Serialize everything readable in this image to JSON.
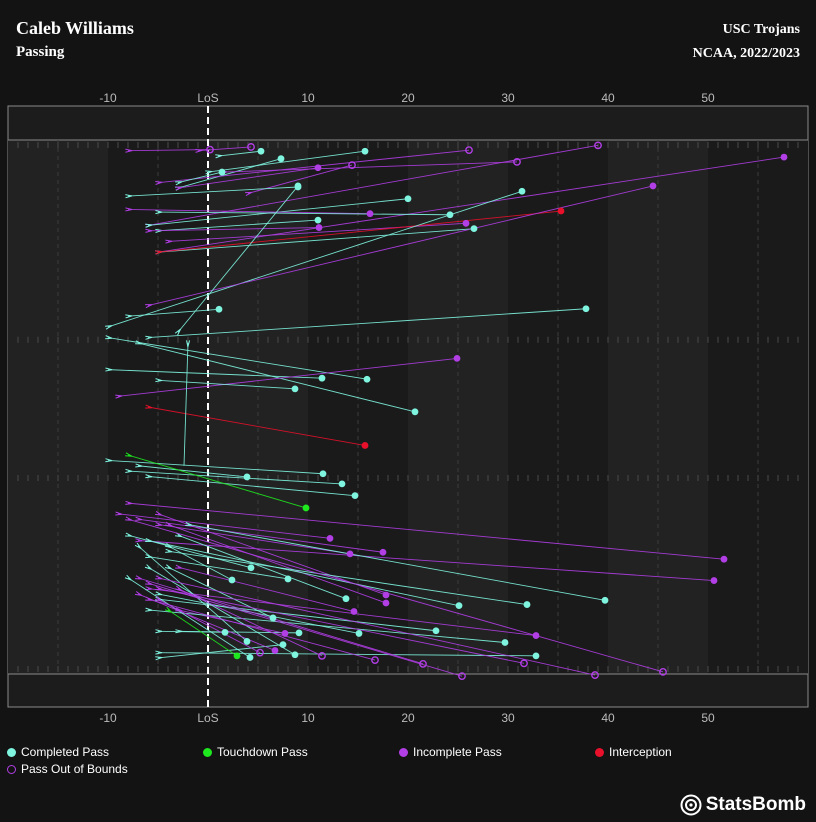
{
  "header": {
    "player": "Caleb Williams",
    "subtitle": "Passing",
    "team": "USC Trojans",
    "competition": "NCAA, 2022/2023"
  },
  "legend": [
    {
      "label": "Completed Pass",
      "color": "#7ff5e0",
      "style": "filled"
    },
    {
      "label": "Touchdown Pass",
      "color": "#1ee81e",
      "style": "filled"
    },
    {
      "label": "Incomplete Pass",
      "color": "#b23ee6",
      "style": "filled"
    },
    {
      "label": "Interception",
      "color": "#e8102b",
      "style": "filled"
    },
    {
      "label": "Pass Out of Bounds",
      "color": "#b23ee6",
      "style": "hollow"
    }
  ],
  "brand": "StatsBomb",
  "chart_data": {
    "type": "scatter",
    "description_axis": "x = yards relative to line of scrimmage",
    "x_range": [
      -20,
      60
    ],
    "x_ticks": [
      -10,
      0,
      10,
      20,
      30,
      40,
      50
    ],
    "x_tick_labels": [
      "-10",
      "LoS",
      "10",
      "20",
      "30",
      "40",
      "50"
    ],
    "lateral_range": [
      0,
      100
    ],
    "colors": {
      "completed": "#7ff5e0",
      "touchdown": "#1ee81e",
      "incomplete": "#b23ee6",
      "interception": "#e8102b",
      "out_of_bounds": "#b23ee6"
    },
    "passes": [
      {
        "x0": -8,
        "y0": 2,
        "x1": 0.2,
        "y1": 1.8,
        "type": "out_of_bounds"
      },
      {
        "x0": -1,
        "y0": 2,
        "x1": 4.3,
        "y1": 1.3,
        "type": "out_of_bounds"
      },
      {
        "x0": 1,
        "y0": 3,
        "x1": 5.3,
        "y1": 2.1,
        "type": "completed"
      },
      {
        "x0": 0,
        "y0": 6,
        "x1": 15.7,
        "y1": 2.1,
        "type": "completed"
      },
      {
        "x0": -3,
        "y0": 9,
        "x1": 7.3,
        "y1": 3.5,
        "type": "completed"
      },
      {
        "x0": -5,
        "y0": 8,
        "x1": 26.1,
        "y1": 1.9,
        "type": "out_of_bounds"
      },
      {
        "x0": -6,
        "y0": 16,
        "x1": 39,
        "y1": 1,
        "type": "out_of_bounds"
      },
      {
        "x0": 4,
        "y0": 10,
        "x1": 14.4,
        "y1": 4.7,
        "type": "out_of_bounds"
      },
      {
        "x0": 1.5,
        "y0": 6,
        "x1": 30.9,
        "y1": 4.1,
        "type": "out_of_bounds"
      },
      {
        "x0": -3,
        "y0": 9,
        "x1": 11,
        "y1": 5.2,
        "type": "incomplete"
      },
      {
        "x0": -5,
        "y0": 21,
        "x1": 57.6,
        "y1": 3.2,
        "type": "incomplete"
      },
      {
        "x0": -3,
        "y0": 8,
        "x1": 1.4,
        "y1": 6,
        "type": "completed"
      },
      {
        "x0": -6,
        "y0": 16,
        "x1": 20,
        "y1": 11,
        "type": "completed"
      },
      {
        "x0": -8,
        "y0": 10.5,
        "x1": 9,
        "y1": 8.8,
        "type": "completed"
      },
      {
        "x0": -8,
        "y0": 13,
        "x1": 16.2,
        "y1": 13.8,
        "type": "incomplete"
      },
      {
        "x0": -5,
        "y0": 13.5,
        "x1": 24.2,
        "y1": 14,
        "type": "completed"
      },
      {
        "x0": -5,
        "y0": 17,
        "x1": 11,
        "y1": 15,
        "type": "completed"
      },
      {
        "x0": -6,
        "y0": 17,
        "x1": 11.1,
        "y1": 16.4,
        "type": "incomplete"
      },
      {
        "x0": -5,
        "y0": 21,
        "x1": 26.6,
        "y1": 16.6,
        "type": "completed"
      },
      {
        "x0": -4,
        "y0": 19,
        "x1": 25.8,
        "y1": 15.6,
        "type": "incomplete"
      },
      {
        "x0": -5,
        "y0": 21,
        "x1": 35.3,
        "y1": 13.3,
        "type": "interception"
      },
      {
        "x0": -10,
        "y0": 35,
        "x1": 31.4,
        "y1": 9.6,
        "type": "completed"
      },
      {
        "x0": -6,
        "y0": 31,
        "x1": 44.5,
        "y1": 8.6,
        "type": "incomplete"
      },
      {
        "x0": -3,
        "y0": 36,
        "x1": 9,
        "y1": 8.6,
        "type": "completed"
      },
      {
        "x0": -8,
        "y0": 33,
        "x1": 1.1,
        "y1": 31.7,
        "type": "completed"
      },
      {
        "x0": -6,
        "y0": 37,
        "x1": 37.8,
        "y1": 31.6,
        "type": "completed"
      },
      {
        "x0": -10,
        "y0": 37,
        "x1": 15.9,
        "y1": 44.8,
        "type": "completed"
      },
      {
        "x0": -7,
        "y0": 38,
        "x1": 20.7,
        "y1": 50.9,
        "type": "completed"
      },
      {
        "x0": -10,
        "y0": 43,
        "x1": 11.4,
        "y1": 44.6,
        "type": "completed"
      },
      {
        "x0": -9,
        "y0": 48,
        "x1": 24.9,
        "y1": 40.9,
        "type": "incomplete"
      },
      {
        "x0": -5,
        "y0": 45,
        "x1": 8.7,
        "y1": 46.6,
        "type": "completed"
      },
      {
        "x0": -6,
        "y0": 50,
        "x1": 15.7,
        "y1": 57.2,
        "type": "interception"
      },
      {
        "x0": -2,
        "y0": 38,
        "x1": -2.4,
        "y1": 61,
        "type": "none"
      },
      {
        "x0": -10,
        "y0": 60,
        "x1": 11.5,
        "y1": 62.5,
        "type": "completed"
      },
      {
        "x0": -7,
        "y0": 61,
        "x1": 3.9,
        "y1": 63.1,
        "type": "completed"
      },
      {
        "x0": -8,
        "y0": 62,
        "x1": 13.4,
        "y1": 64.4,
        "type": "completed"
      },
      {
        "x0": -6,
        "y0": 63,
        "x1": 14.7,
        "y1": 66.6,
        "type": "completed"
      },
      {
        "x0": -8,
        "y0": 59,
        "x1": 9.8,
        "y1": 68.9,
        "type": "touchdown"
      },
      {
        "x0": -8,
        "y0": 68,
        "x1": 51.6,
        "y1": 78.5,
        "type": "incomplete"
      },
      {
        "x0": -9,
        "y0": 70,
        "x1": 12.2,
        "y1": 74.6,
        "type": "incomplete"
      },
      {
        "x0": -7,
        "y0": 71,
        "x1": 17.5,
        "y1": 77.2,
        "type": "incomplete"
      },
      {
        "x0": -5,
        "y0": 72,
        "x1": 14.2,
        "y1": 77.5,
        "type": "incomplete"
      },
      {
        "x0": -8,
        "y0": 74,
        "x1": 4.3,
        "y1": 80.1,
        "type": "completed"
      },
      {
        "x0": -7,
        "y0": 75,
        "x1": 50.6,
        "y1": 82.5,
        "type": "incomplete"
      },
      {
        "x0": -4,
        "y0": 76,
        "x1": 2.4,
        "y1": 82.4,
        "type": "completed"
      },
      {
        "x0": -6,
        "y0": 78,
        "x1": 8,
        "y1": 82.2,
        "type": "completed"
      },
      {
        "x0": -5,
        "y0": 70,
        "x1": 17.8,
        "y1": 85.2,
        "type": "incomplete"
      },
      {
        "x0": -4,
        "y0": 72,
        "x1": 17.8,
        "y1": 86.7,
        "type": "incomplete"
      },
      {
        "x0": -3,
        "y0": 74,
        "x1": 13.8,
        "y1": 85.9,
        "type": "completed"
      },
      {
        "x0": -6,
        "y0": 75,
        "x1": 25.1,
        "y1": 87.2,
        "type": "completed"
      },
      {
        "x0": -4,
        "y0": 77,
        "x1": 31.9,
        "y1": 87,
        "type": "completed"
      },
      {
        "x0": -2,
        "y0": 72,
        "x1": 39.7,
        "y1": 86.2,
        "type": "completed"
      },
      {
        "x0": -3,
        "y0": 80,
        "x1": 14.6,
        "y1": 88.3,
        "type": "incomplete"
      },
      {
        "x0": -4,
        "y0": 80,
        "x1": 6.5,
        "y1": 89.5,
        "type": "completed"
      },
      {
        "x0": -5,
        "y0": 92,
        "x1": 1.7,
        "y1": 92.2,
        "type": "completed"
      },
      {
        "x0": -3,
        "y0": 92,
        "x1": 9.1,
        "y1": 92.3,
        "type": "completed"
      },
      {
        "x0": -5,
        "y0": 85,
        "x1": 15.1,
        "y1": 92.4,
        "type": "completed"
      },
      {
        "x0": -5,
        "y0": 86,
        "x1": 22.8,
        "y1": 91.9,
        "type": "completed"
      },
      {
        "x0": -6,
        "y0": 84,
        "x1": 32.8,
        "y1": 92.8,
        "type": "incomplete"
      },
      {
        "x0": -3,
        "y0": 88,
        "x1": 7.7,
        "y1": 92.4,
        "type": "incomplete"
      },
      {
        "x0": -6,
        "y0": 88,
        "x1": 29.7,
        "y1": 94.1,
        "type": "completed"
      },
      {
        "x0": -7,
        "y0": 76,
        "x1": 3.9,
        "y1": 93.9,
        "type": "completed"
      },
      {
        "x0": -5,
        "y0": 97,
        "x1": 7.5,
        "y1": 94.5,
        "type": "completed"
      },
      {
        "x0": -6,
        "y0": 80,
        "x1": 8.7,
        "y1": 96.4,
        "type": "completed"
      },
      {
        "x0": -5,
        "y0": 96,
        "x1": 32.8,
        "y1": 96.6,
        "type": "completed"
      },
      {
        "x0": -8,
        "y0": 82,
        "x1": 4.2,
        "y1": 96.9,
        "type": "completed"
      },
      {
        "x0": -7,
        "y0": 85,
        "x1": 6.7,
        "y1": 95.6,
        "type": "incomplete"
      },
      {
        "x0": -4,
        "y0": 88,
        "x1": 2.9,
        "y1": 96.6,
        "type": "touchdown"
      },
      {
        "x0": -5,
        "y0": 86,
        "x1": 5.2,
        "y1": 96,
        "type": "out_of_bounds"
      },
      {
        "x0": -3,
        "y0": 84,
        "x1": 11.4,
        "y1": 96.6,
        "type": "out_of_bounds"
      },
      {
        "x0": -6,
        "y0": 86,
        "x1": 16.7,
        "y1": 97.4,
        "type": "out_of_bounds"
      },
      {
        "x0": -7,
        "y0": 82,
        "x1": 21.5,
        "y1": 98.1,
        "type": "out_of_bounds"
      },
      {
        "x0": -5,
        "y0": 84,
        "x1": 31.6,
        "y1": 98,
        "type": "out_of_bounds"
      },
      {
        "x0": -6,
        "y0": 83,
        "x1": 25.4,
        "y1": 100.4,
        "type": "out_of_bounds"
      },
      {
        "x0": -5,
        "y0": 82,
        "x1": 38.7,
        "y1": 100.2,
        "type": "out_of_bounds"
      },
      {
        "x0": -8,
        "y0": 71,
        "x1": 45.5,
        "y1": 99.6,
        "type": "out_of_bounds"
      }
    ]
  }
}
